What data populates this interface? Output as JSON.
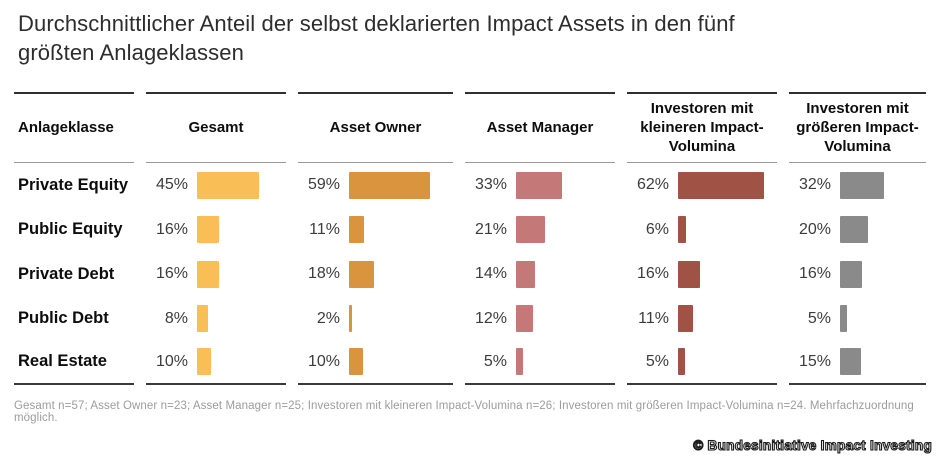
{
  "table": {
    "first_header": "Anlageklasse"
  },
  "footnote": "Gesamt n=57; Asset Owner n=23; Asset Manager n=25; Investoren mit kleineren Impact-Volumina n=26; Investoren mit größeren Impact-Volumina n=24. Mehrfachzuordnung möglich.",
  "watermark": "© Bundesinitiative Impact Investing",
  "chart_data": {
    "type": "bar",
    "title": "Durchschnittlicher Anteil der selbst deklarierten Impact Assets in den fünf größten Anlageklassen",
    "unit": "%",
    "categories": [
      "Private Equity",
      "Public Equity",
      "Private Debt",
      "Public Debt",
      "Real Estate"
    ],
    "series": [
      {
        "name": "Gesamt",
        "color": "#F9BE55",
        "values": [
          45,
          16,
          16,
          8,
          10
        ]
      },
      {
        "name": "Asset Owner",
        "color": "#DA943E",
        "values": [
          59,
          11,
          18,
          2,
          10
        ]
      },
      {
        "name": "Asset Manager",
        "color": "#C47877",
        "values": [
          33,
          21,
          14,
          12,
          5
        ]
      },
      {
        "name": "Investoren mit kleineren Impact-Volumina",
        "color": "#A05244",
        "values": [
          62,
          6,
          16,
          11,
          5
        ]
      },
      {
        "name": "Investoren mit größeren Impact-Volumina",
        "color": "#8A8A8A",
        "values": [
          32,
          20,
          16,
          5,
          15
        ]
      }
    ],
    "value_range": [
      0,
      62
    ],
    "grid": false,
    "legend_position": "column-headers",
    "note": "Gesamt n=57; Asset Owner n=23; Asset Manager n=25; Investoren mit kleineren Impact-Volumina n=26; Investoren mit größeren Impact-Volumina n=24. Mehrfachzuordnung möglich."
  }
}
